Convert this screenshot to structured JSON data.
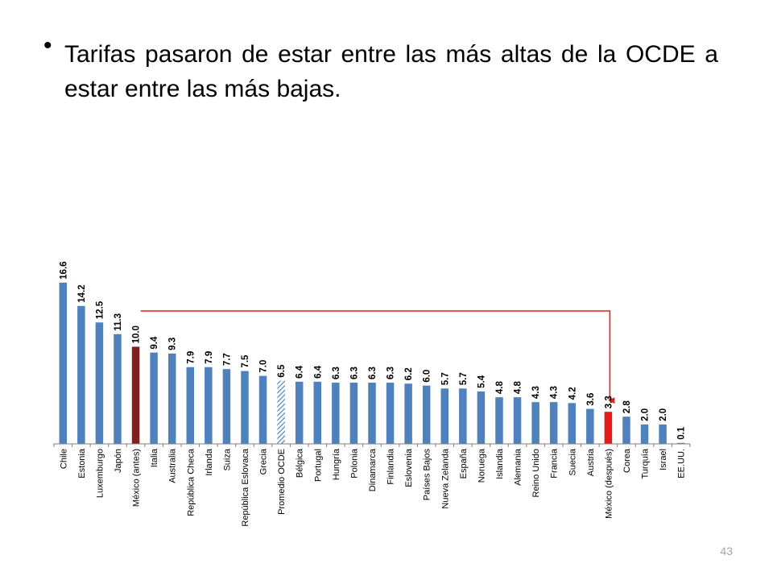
{
  "slide": {
    "bullet": "•",
    "text": "Tarifas pasaron de estar entre las más altas de la OCDE a estar entre las más bajas.",
    "page_number": "43"
  },
  "colors": {
    "bar": "#4f81bd",
    "highlight_before": "#7f2020",
    "highlight_after": "#e31b1b",
    "average": "#95b3d7",
    "arrow": "#d9261c"
  },
  "chart_data": {
    "type": "bar",
    "title": "",
    "xlabel": "",
    "ylabel": "",
    "ylim": [
      0,
      17.5
    ],
    "grid": false,
    "categories": [
      "Chile",
      "Estonia",
      "Luxemburgo",
      "Japón",
      "México (antes)",
      "Italia",
      "Australia",
      "República Checa",
      "Irlanda",
      "Suiza",
      "República Eslovaca",
      "Grecia",
      "Promedio OCDE",
      "Bélgica",
      "Portugal",
      "Hungría",
      "Polonia",
      "Dinamarca",
      "Finlandia",
      "Eslovenia",
      "Países Bajos",
      "Nueva Zelanda",
      "España",
      "Noruega",
      "Islandia",
      "Alemania",
      "Reino Unido",
      "Francia",
      "Suecia",
      "Austria",
      "México (después)",
      "Corea",
      "Turquía",
      "Israel",
      "EE.UU."
    ],
    "values": [
      16.6,
      14.2,
      12.5,
      11.3,
      10.0,
      9.4,
      9.3,
      7.9,
      7.9,
      7.7,
      7.5,
      7.0,
      6.5,
      6.4,
      6.4,
      6.3,
      6.3,
      6.3,
      6.3,
      6.2,
      6.0,
      5.7,
      5.7,
      5.4,
      4.8,
      4.8,
      4.3,
      4.3,
      4.2,
      3.6,
      3.3,
      2.8,
      2.0,
      2.0,
      0.1
    ],
    "value_labels": [
      "16.6",
      "14.2",
      "12.5",
      "11.3",
      "10.0",
      "9.4",
      "9.3",
      "7.9",
      "7.9",
      "7.7",
      "7.5",
      "7.0",
      "6.5",
      "6.4",
      "6.4",
      "6.3",
      "6.3",
      "6.3",
      "6.3",
      "6.2",
      "6.0",
      "5.7",
      "5.7",
      "5.4",
      "4.8",
      "4.8",
      "4.3",
      "4.3",
      "4.2",
      "3.6",
      "3.3",
      "2.8",
      "2.0",
      "2.0",
      "0.1"
    ],
    "highlights": {
      "México (antes)": "highlight_before",
      "México (después)": "highlight_after",
      "Promedio OCDE": "average"
    },
    "annotation": {
      "type": "arrow",
      "from": "México (antes)",
      "to": "México (después)"
    }
  }
}
